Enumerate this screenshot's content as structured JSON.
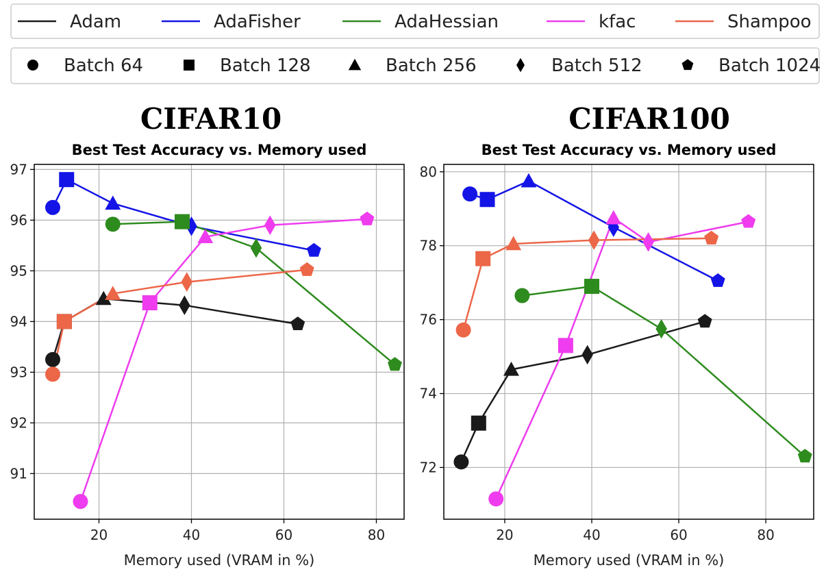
{
  "legend_optimizers": [
    {
      "name": "Adam",
      "color": "#1a1a1a"
    },
    {
      "name": "AdaFisher",
      "color": "#1414e6"
    },
    {
      "name": "AdaHessian",
      "color": "#2e8b1e"
    },
    {
      "name": "kfac",
      "color": "#ee3cee"
    },
    {
      "name": "Shampoo",
      "color": "#ec6648"
    }
  ],
  "legend_batches": [
    {
      "label": "Batch 64",
      "marker": "circle"
    },
    {
      "label": "Batch 128",
      "marker": "square"
    },
    {
      "label": "Batch 256",
      "marker": "triangle"
    },
    {
      "label": "Batch 512",
      "marker": "diamond"
    },
    {
      "label": "Batch 1024",
      "marker": "pentagon"
    }
  ],
  "chart_data": [
    {
      "type": "line",
      "dataset_title": "CIFAR10",
      "title": "Best Test Accuracy vs. Memory used",
      "xlabel": "Memory used (VRAM in %)",
      "ylabel": "",
      "xlim": [
        6,
        86
      ],
      "ylim": [
        90.1,
        97.1
      ],
      "xticks": [
        20,
        40,
        60,
        80
      ],
      "yticks": [
        91,
        92,
        93,
        94,
        95,
        96,
        97
      ],
      "grid": true,
      "series": [
        {
          "name": "Adam",
          "x": [
            10,
            12.5,
            21,
            38.5,
            63
          ],
          "y": [
            93.25,
            94.0,
            94.45,
            94.32,
            93.95
          ]
        },
        {
          "name": "AdaFisher",
          "x": [
            10,
            13,
            23,
            40,
            66.5
          ],
          "y": [
            96.25,
            96.8,
            96.33,
            95.88,
            95.4
          ]
        },
        {
          "name": "AdaHessian",
          "x": [
            23,
            38,
            38,
            54,
            84
          ],
          "y": [
            95.92,
            95.97,
            95.97,
            95.45,
            93.15
          ]
        },
        {
          "name": "kfac",
          "x": [
            16,
            31,
            43,
            57,
            78
          ],
          "y": [
            90.45,
            94.37,
            95.67,
            95.9,
            96.02
          ]
        },
        {
          "name": "Shampoo",
          "x": [
            10,
            12.5,
            23,
            39,
            65
          ],
          "y": [
            92.96,
            94.0,
            94.55,
            94.78,
            95.02
          ]
        }
      ],
      "markers": [
        "circle",
        "square",
        "triangle",
        "diamond",
        "pentagon"
      ]
    },
    {
      "type": "line",
      "dataset_title": "CIFAR100",
      "title": "Best Test Accuracy vs. Memory used",
      "xlabel": "Memory used (VRAM in %)",
      "ylabel": "",
      "xlim": [
        6,
        91
      ],
      "ylim": [
        70.6,
        80.2
      ],
      "xticks": [
        20,
        40,
        60,
        80
      ],
      "yticks": [
        72,
        74,
        76,
        78,
        80
      ],
      "grid": true,
      "series": [
        {
          "name": "Adam",
          "x": [
            10,
            14,
            21.5,
            39,
            66
          ],
          "y": [
            72.15,
            73.2,
            74.65,
            75.05,
            75.95
          ]
        },
        {
          "name": "AdaFisher",
          "x": [
            12,
            16,
            25.5,
            45,
            69
          ],
          "y": [
            79.4,
            79.25,
            79.75,
            78.5,
            77.05
          ]
        },
        {
          "name": "AdaHessian",
          "x": [
            24,
            40,
            40,
            56,
            89
          ],
          "y": [
            76.65,
            76.9,
            76.9,
            75.75,
            72.3
          ]
        },
        {
          "name": "kfac",
          "x": [
            18,
            34,
            45,
            53,
            76
          ],
          "y": [
            71.15,
            75.3,
            78.75,
            78.1,
            78.65
          ]
        },
        {
          "name": "Shampoo",
          "x": [
            10.5,
            15,
            22,
            40.5,
            67.5
          ],
          "y": [
            75.72,
            77.65,
            78.05,
            78.15,
            78.2
          ]
        }
      ],
      "markers": [
        "circle",
        "square",
        "triangle",
        "diamond",
        "pentagon"
      ]
    }
  ]
}
